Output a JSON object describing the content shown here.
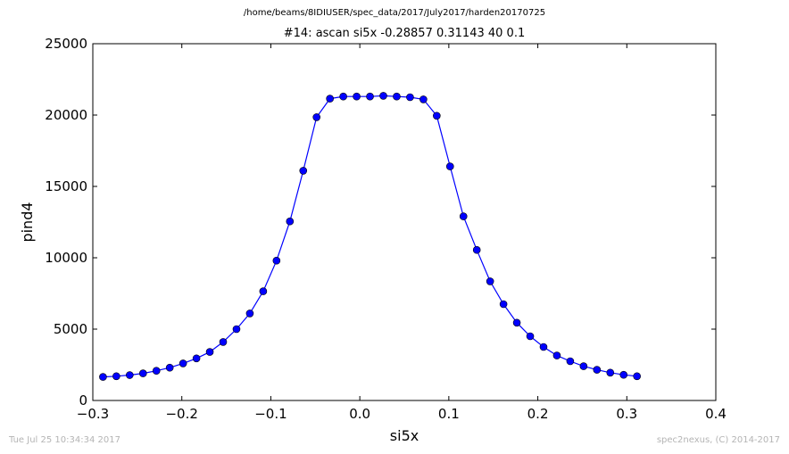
{
  "header": {
    "file_path": "/home/beams/8IDIUSER/spec_data/2017/July2017/harden20170725"
  },
  "footer": {
    "timestamp": "Tue Jul 25 10:34:34 2017",
    "credit": "spec2nexus, (C) 2014-2017"
  },
  "colors": {
    "series": "#0000ff",
    "marker_fill": "#0000ff",
    "axes": "#000000",
    "footer_text": "#b4b4b4"
  },
  "chart_data": {
    "type": "line",
    "title": "#14: ascan  si5x -0.28857 0.31143  40 0.1",
    "xlabel": "si5x",
    "ylabel": "pind4",
    "xlim": [
      -0.3,
      0.4
    ],
    "ylim": [
      0,
      25000
    ],
    "xticks": [
      -0.3,
      -0.2,
      -0.1,
      0.0,
      0.1,
      0.2,
      0.3,
      0.4
    ],
    "xtick_labels": [
      "−0.3",
      "−0.2",
      "−0.1",
      "0.0",
      "0.1",
      "0.2",
      "0.3",
      "0.4"
    ],
    "yticks": [
      0,
      5000,
      10000,
      15000,
      20000,
      25000
    ],
    "ytick_labels": [
      "0",
      "5000",
      "10000",
      "15000",
      "20000",
      "25000"
    ],
    "grid": false,
    "legend": "none",
    "marker": "circle",
    "series": [
      {
        "name": "",
        "x": [
          -0.28857,
          -0.27357,
          -0.25857,
          -0.24357,
          -0.22857,
          -0.21357,
          -0.19857,
          -0.18357,
          -0.16857,
          -0.15357,
          -0.13857,
          -0.12357,
          -0.10857,
          -0.09357,
          -0.07857,
          -0.06357,
          -0.04857,
          -0.03357,
          -0.01857,
          -0.00357,
          0.01143,
          0.02643,
          0.04143,
          0.05643,
          0.07143,
          0.08643,
          0.10143,
          0.11643,
          0.13143,
          0.14643,
          0.16143,
          0.17643,
          0.19143,
          0.20643,
          0.22143,
          0.23643,
          0.25143,
          0.26643,
          0.28143,
          0.29643,
          0.31143
        ],
        "y": [
          1650,
          1700,
          1780,
          1900,
          2080,
          2300,
          2600,
          2950,
          3400,
          4100,
          5000,
          6100,
          7650,
          9800,
          12550,
          16100,
          19850,
          21150,
          21300,
          21300,
          21300,
          21350,
          21300,
          21250,
          21100,
          19950,
          16400,
          12900,
          10550,
          8350,
          6750,
          5450,
          4500,
          3750,
          3150,
          2750,
          2400,
          2150,
          1950,
          1800,
          1700
        ]
      }
    ]
  }
}
